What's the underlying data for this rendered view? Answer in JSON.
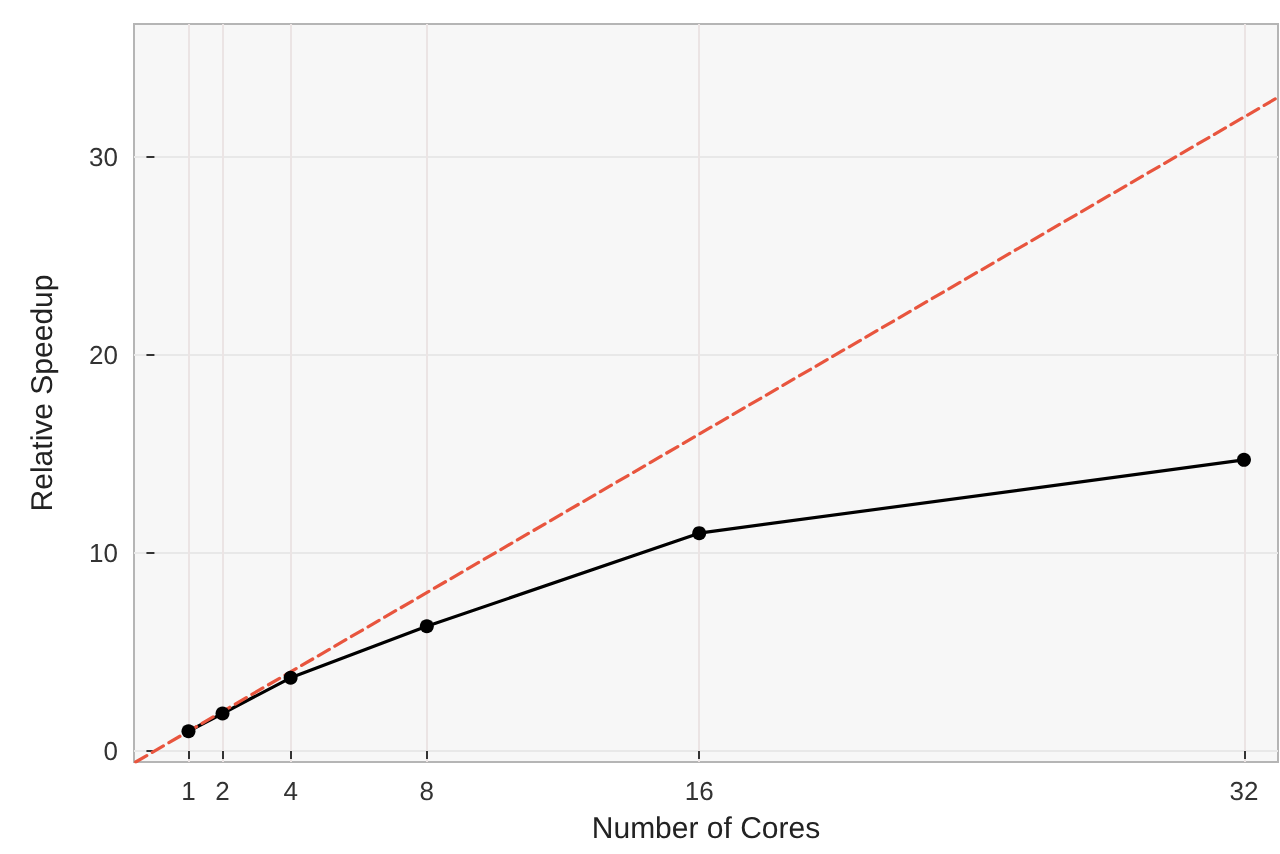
{
  "chart_data": {
    "type": "line",
    "xlabel": "Number of Cores",
    "ylabel": "Relative Speedup",
    "series": [
      {
        "color": "#000000",
        "x": [
          1,
          2,
          4,
          8,
          16,
          32
        ],
        "values": [
          1.0,
          1.9,
          3.7,
          6.3,
          11.0,
          14.7
        ],
        "marker": "circle",
        "line_style": "solid"
      },
      {
        "color": "#e8553e",
        "x": [
          -0.55,
          33
        ],
        "values": [
          -0.55,
          33
        ],
        "marker": "none",
        "line_style": "dashed"
      }
    ],
    "xlim": [
      -0.6,
      33
    ],
    "xticks": [
      1,
      2,
      4,
      8,
      16,
      32
    ],
    "ylim": [
      -0.55,
      36.7
    ],
    "yticks": [
      0,
      10,
      20,
      30
    ],
    "grid": true
  }
}
